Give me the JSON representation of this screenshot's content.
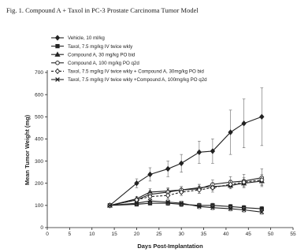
{
  "figure": {
    "title": "Fig. 1. Compound A + Taxol in PC-3 Prostate Carcinoma Tumor Model"
  },
  "chart_data": {
    "type": "line",
    "title": "",
    "xlabel": "Days Post-Implantation",
    "ylabel": "Mean Tumor Weight (mg)",
    "xlim": [
      0,
      55
    ],
    "ylim": [
      0,
      700
    ],
    "xticks": [
      0,
      5,
      10,
      15,
      20,
      25,
      30,
      35,
      40,
      45,
      50,
      55
    ],
    "yticks": [
      0,
      100,
      200,
      300,
      400,
      500,
      600,
      700
    ],
    "grid": false,
    "legend_position": "top-left",
    "series": [
      {
        "name": "Vehicle, 10 ml/kg",
        "marker": "diamond",
        "filled": true,
        "x": [
          14,
          20,
          23,
          27,
          30,
          34,
          37,
          41,
          44,
          48
        ],
        "y": [
          100,
          200,
          240,
          265,
          290,
          340,
          345,
          430,
          470,
          500
        ],
        "err": [
          0,
          20,
          30,
          35,
          40,
          50,
          55,
          100,
          110,
          130
        ]
      },
      {
        "name": "Taxol, 7.5 mg/kg IV twice wkly",
        "marker": "square",
        "filled": true,
        "x": [
          14,
          20,
          23,
          27,
          30,
          34,
          37,
          41,
          44,
          48
        ],
        "y": [
          100,
          105,
          110,
          110,
          105,
          100,
          100,
          95,
          90,
          85
        ],
        "err": [
          0,
          8,
          8,
          10,
          10,
          10,
          10,
          10,
          10,
          10
        ]
      },
      {
        "name": "Compound A, 30 mg/kg PO bid",
        "marker": "triangle",
        "filled": true,
        "x": [
          14,
          20,
          23,
          27,
          30,
          34,
          37,
          41,
          44,
          48
        ],
        "y": [
          100,
          130,
          160,
          165,
          170,
          180,
          185,
          190,
          200,
          210
        ],
        "err": [
          0,
          10,
          15,
          15,
          15,
          15,
          15,
          15,
          15,
          15
        ]
      },
      {
        "name": "Compound A, 100 mg/kg PO q2d",
        "marker": "circle",
        "filled": false,
        "x": [
          14,
          20,
          23,
          27,
          30,
          34,
          37,
          41,
          44,
          48
        ],
        "y": [
          100,
          125,
          150,
          160,
          170,
          175,
          195,
          205,
          210,
          225
        ],
        "err": [
          0,
          10,
          15,
          15,
          15,
          20,
          20,
          25,
          30,
          40
        ]
      },
      {
        "name": "Taxol, 7.5 mg/kg IV twice wkly + Compound A, 30mg/kg PO bid",
        "marker": "diamond",
        "filled": false,
        "dashed": true,
        "x": [
          14,
          20,
          23,
          27,
          30,
          34,
          37,
          41,
          44,
          48
        ],
        "y": [
          100,
          125,
          140,
          145,
          160,
          170,
          180,
          195,
          205,
          215
        ],
        "err": [
          0,
          10,
          15,
          15,
          15,
          15,
          20,
          20,
          20,
          25
        ]
      },
      {
        "name": "Taxol, 7.5 mg/kg IV twice wkly +Compound A, 100mg/kg PO q2d",
        "marker": "cross",
        "filled": true,
        "x": [
          14,
          20,
          23,
          27,
          30,
          34,
          37,
          41,
          44,
          48
        ],
        "y": [
          100,
          110,
          120,
          115,
          110,
          95,
          90,
          85,
          80,
          70
        ],
        "err": [
          0,
          8,
          10,
          10,
          10,
          10,
          10,
          10,
          10,
          10
        ]
      }
    ]
  }
}
